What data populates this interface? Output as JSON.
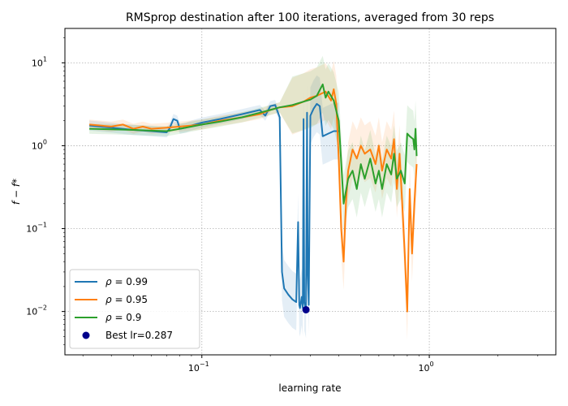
{
  "chart_data": {
    "type": "line",
    "title": "RMSprop destination after 100 iterations, averaged from 30 reps",
    "xlabel": "learning rate",
    "ylabel": "f − f*",
    "xscale": "log",
    "yscale": "log",
    "xlim": [
      0.025,
      3.6
    ],
    "ylim": [
      0.003,
      26
    ],
    "grid": true,
    "legend_position": "lower-left",
    "x_ticks": [
      {
        "value": 0.1,
        "base": "10",
        "exp": "−1"
      },
      {
        "value": 1,
        "base": "10",
        "exp": "0"
      }
    ],
    "y_ticks": [
      {
        "value": 0.01,
        "base": "10",
        "exp": "−2"
      },
      {
        "value": 0.1,
        "base": "10",
        "exp": "−1"
      },
      {
        "value": 1,
        "base": "10",
        "exp": "0"
      },
      {
        "value": 10,
        "base": "10",
        "exp": "1"
      }
    ],
    "series": [
      {
        "name": "ρ = 0.99",
        "symbol": "ρ",
        "value_text": " = 0.99",
        "color": "#1f77b4",
        "x": [
          0.032,
          0.04,
          0.05,
          0.06,
          0.07,
          0.072,
          0.075,
          0.078,
          0.08,
          0.085,
          0.09,
          0.1,
          0.12,
          0.15,
          0.18,
          0.19,
          0.2,
          0.21,
          0.22,
          0.225,
          0.23,
          0.24,
          0.25,
          0.26,
          0.265,
          0.268,
          0.27,
          0.275,
          0.278,
          0.28,
          0.282,
          0.287,
          0.29,
          0.292,
          0.295,
          0.3,
          0.31,
          0.32,
          0.33,
          0.34,
          0.36,
          0.38,
          0.4
        ],
        "y": [
          1.75,
          1.65,
          1.55,
          1.5,
          1.45,
          1.6,
          2.1,
          2.0,
          1.6,
          1.65,
          1.75,
          1.9,
          2.1,
          2.4,
          2.7,
          2.3,
          3.0,
          3.1,
          2.2,
          0.03,
          0.019,
          0.016,
          0.014,
          0.013,
          0.12,
          0.012,
          0.011,
          0.015,
          0.011,
          2.1,
          0.013,
          0.0105,
          2.5,
          0.03,
          0.012,
          2.3,
          2.8,
          3.2,
          3.0,
          1.3,
          1.4,
          1.5,
          1.5
        ]
      },
      {
        "name": "ρ = 0.95",
        "symbol": "ρ",
        "value_text": " = 0.95",
        "color": "#ff7f0e",
        "x": [
          0.032,
          0.04,
          0.045,
          0.05,
          0.055,
          0.06,
          0.07,
          0.08,
          0.09,
          0.1,
          0.12,
          0.15,
          0.18,
          0.2,
          0.22,
          0.25,
          0.28,
          0.3,
          0.32,
          0.35,
          0.37,
          0.38,
          0.39,
          0.4,
          0.41,
          0.42,
          0.43,
          0.44,
          0.46,
          0.48,
          0.5,
          0.52,
          0.55,
          0.58,
          0.6,
          0.62,
          0.65,
          0.68,
          0.7,
          0.72,
          0.74,
          0.76,
          0.78,
          0.8,
          0.82,
          0.84,
          0.86,
          0.88
        ],
        "y": [
          1.8,
          1.7,
          1.8,
          1.6,
          1.7,
          1.6,
          1.65,
          1.7,
          1.75,
          1.8,
          2.0,
          2.2,
          2.4,
          2.7,
          2.9,
          3.0,
          3.4,
          3.8,
          4.0,
          4.5,
          3.5,
          4.8,
          3.2,
          0.7,
          0.1,
          0.04,
          0.2,
          0.5,
          0.9,
          0.7,
          1.0,
          0.8,
          0.9,
          0.6,
          1.0,
          0.5,
          0.9,
          0.7,
          1.2,
          0.3,
          0.8,
          0.2,
          0.05,
          0.01,
          0.3,
          0.05,
          0.2,
          0.6
        ]
      },
      {
        "name": "ρ = 0.9",
        "symbol": "ρ",
        "value_text": " = 0.9",
        "color": "#2ca02c",
        "x": [
          0.032,
          0.04,
          0.05,
          0.06,
          0.07,
          0.08,
          0.09,
          0.1,
          0.12,
          0.15,
          0.18,
          0.2,
          0.22,
          0.25,
          0.28,
          0.3,
          0.32,
          0.34,
          0.35,
          0.36,
          0.38,
          0.4,
          0.42,
          0.44,
          0.46,
          0.48,
          0.5,
          0.52,
          0.55,
          0.58,
          0.6,
          0.62,
          0.65,
          0.68,
          0.7,
          0.72,
          0.75,
          0.78,
          0.8,
          0.82,
          0.85,
          0.86,
          0.87,
          0.88
        ],
        "y": [
          1.6,
          1.58,
          1.55,
          1.52,
          1.5,
          1.6,
          1.7,
          1.8,
          1.95,
          2.2,
          2.5,
          2.7,
          2.9,
          3.1,
          3.4,
          3.6,
          4.0,
          5.5,
          3.8,
          4.5,
          3.5,
          2.0,
          0.2,
          0.4,
          0.5,
          0.3,
          0.6,
          0.4,
          0.7,
          0.35,
          0.5,
          0.3,
          0.6,
          0.45,
          0.8,
          0.4,
          0.5,
          0.35,
          1.4,
          1.3,
          1.2,
          0.9,
          1.6,
          0.75
        ]
      }
    ],
    "best_point": {
      "label": "Best lr=0.287",
      "x": 0.287,
      "y": 0.0105,
      "color": "#00008b"
    }
  }
}
